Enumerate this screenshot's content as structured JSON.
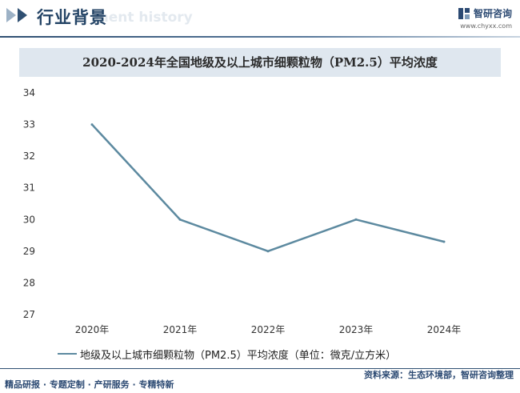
{
  "header": {
    "title": "行业背景",
    "subtitle": "ment history",
    "logo_text": "智研咨询",
    "logo_url": "www.chyxx.com"
  },
  "colors": {
    "brand": "#2c4a73",
    "series_line": "#5d8aa0",
    "title_bar": "#dfe7ef"
  },
  "chart_data": {
    "type": "line",
    "title": "2020-2024年全国地级及以上城市细颗粒物（PM2.5）平均浓度",
    "xlabel": "",
    "ylabel": "",
    "categories": [
      "2020年",
      "2021年",
      "2022年",
      "2023年",
      "2024年"
    ],
    "series": [
      {
        "name": "地级及以上城市细颗粒物（PM2.5）平均浓度（单位：微克/立方米）",
        "values": [
          33,
          30,
          29,
          30,
          29.3
        ]
      }
    ],
    "ylim": [
      27,
      34
    ],
    "yticks": [
      27,
      28,
      29,
      30,
      31,
      32,
      33,
      34
    ],
    "grid": false,
    "legend_position": "bottom-left"
  },
  "footer": {
    "left_text": "精品研报 · 专题定制 · 产研服务 · 专精特新",
    "source": "资料来源：生态环境部，智研咨询整理"
  }
}
